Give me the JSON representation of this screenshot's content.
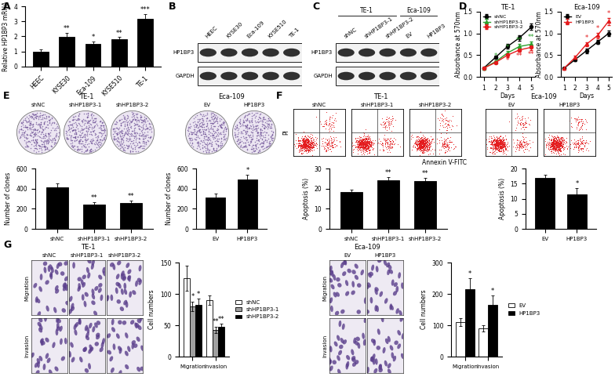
{
  "panel_labels": [
    "A",
    "B",
    "C",
    "D",
    "E",
    "F",
    "G"
  ],
  "chart_data": [
    {
      "type": "bar",
      "categories": [
        "HEEC",
        "KYSE30",
        "Eca-109",
        "KYSE510",
        "TE-1"
      ],
      "values": [
        1.0,
        1.95,
        1.5,
        1.8,
        3.15
      ],
      "errors": [
        0.15,
        0.3,
        0.15,
        0.15,
        0.35
      ],
      "annotations": [
        null,
        "**",
        "*",
        "**",
        "***"
      ],
      "y_label": "Relative HP1BP3 mRNA",
      "ylim": [
        0,
        4
      ],
      "yticks": [
        0,
        1,
        2,
        3,
        4
      ],
      "color": "#000000"
    },
    {
      "type": "line",
      "title": "TE-1",
      "x_label": "Days",
      "y_label": "Absorbance at 570nm",
      "x": [
        1,
        2,
        3,
        4,
        5
      ],
      "xlim": [
        0.7,
        5.3
      ],
      "xticks": [
        1,
        2,
        3,
        4,
        5
      ],
      "ylim": [
        0,
        1.5
      ],
      "yticks": [
        {
          "value": 0,
          "label": "0.0"
        },
        0.5,
        {
          "value": 1,
          "label": "1.0"
        },
        1.5
      ],
      "legend": "upper left",
      "series": [
        {
          "name": "shNC",
          "color": "#000000",
          "marker": "circle",
          "values": [
            0.2,
            0.45,
            0.7,
            0.9,
            1.15
          ],
          "errors": [
            0.02,
            0.04,
            0.05,
            0.06,
            0.07
          ]
        },
        {
          "name": "shHP1BP3-1",
          "color": "#2ca02c",
          "marker": "triangle",
          "values": [
            0.2,
            0.35,
            0.55,
            0.7,
            0.75
          ],
          "errors": [
            0.02,
            0.03,
            0.04,
            0.05,
            0.06
          ],
          "annotations": [
            null,
            "*",
            "*",
            "**",
            "**"
          ]
        },
        {
          "name": "shHP1BP3-2",
          "color": "#e41a1c",
          "marker": "circle",
          "values": [
            0.2,
            0.33,
            0.5,
            0.62,
            0.68
          ],
          "errors": [
            0.02,
            0.03,
            0.04,
            0.05,
            0.06
          ],
          "annotations": [
            null,
            null,
            "*",
            "**",
            "**"
          ]
        }
      ]
    },
    {
      "type": "line",
      "title": "Eca-109",
      "x_label": "Days",
      "y_label": "Absorbance at 570nm",
      "x": [
        1,
        2,
        3,
        4,
        5
      ],
      "xlim": [
        0.7,
        5.3
      ],
      "xticks": [
        1,
        2,
        3,
        4,
        5
      ],
      "ylim": [
        0,
        1.5
      ],
      "yticks": [
        {
          "value": 0,
          "label": "0.0"
        },
        0.5,
        {
          "value": 1,
          "label": "1.0"
        },
        1.5
      ],
      "legend": "upper left",
      "series": [
        {
          "name": "EV",
          "color": "#000000",
          "marker": "circle",
          "values": [
            0.2,
            0.4,
            0.6,
            0.8,
            1.0
          ],
          "errors": [
            0.02,
            0.03,
            0.05,
            0.05,
            0.06
          ]
        },
        {
          "name": "HP1BP3",
          "color": "#e41a1c",
          "marker": "triangle",
          "values": [
            0.2,
            0.45,
            0.75,
            0.95,
            1.28
          ],
          "errors": [
            0.02,
            0.03,
            0.05,
            0.07,
            0.08
          ],
          "annotations": [
            null,
            null,
            "*",
            "*",
            "*"
          ]
        }
      ]
    },
    {
      "type": "bar",
      "categories": [
        "shNC",
        "shHP1BP3-1",
        "shHP1BP3-2"
      ],
      "values": [
        410,
        240,
        255
      ],
      "errors": [
        45,
        25,
        25
      ],
      "annotations": [
        null,
        "**",
        "**"
      ],
      "y_label": "Number of clones",
      "ylim": [
        0,
        600
      ],
      "yticks": [
        0,
        200,
        400,
        600
      ],
      "color": "#000000"
    },
    {
      "type": "bar",
      "categories": [
        "EV",
        "HP1BP3"
      ],
      "values": [
        310,
        490
      ],
      "errors": [
        40,
        50
      ],
      "annotations": [
        null,
        "*"
      ],
      "y_label": "Number of clones",
      "ylim": [
        0,
        600
      ],
      "yticks": [
        0,
        200,
        400,
        600
      ],
      "color": "#000000"
    },
    {
      "type": "bar",
      "categories": [
        "shNC",
        "shHP1BP3-1",
        "shHP1BP3-2"
      ],
      "values": [
        18.5,
        24.2,
        23.8
      ],
      "errors": [
        1.0,
        1.5,
        1.5
      ],
      "annotations": [
        null,
        "**",
        "**"
      ],
      "y_label": "Apoptosis (%)",
      "ylim": [
        0,
        30
      ],
      "yticks": [
        0,
        10,
        20,
        30
      ],
      "color": "#000000"
    },
    {
      "type": "bar",
      "categories": [
        "EV",
        "HP1BP3"
      ],
      "values": [
        17,
        11.5
      ],
      "errors": [
        1.0,
        2.0
      ],
      "annotations": [
        null,
        "*"
      ],
      "y_label": "Apoptosis (%)",
      "ylim": [
        0,
        20
      ],
      "yticks": [
        0,
        5,
        10,
        15,
        20
      ],
      "color": "#000000"
    },
    {
      "type": "bar",
      "categories": [
        "Migration",
        "Invasion"
      ],
      "y_label": "Cell numbers",
      "ylim": [
        0,
        150
      ],
      "yticks": [
        0,
        50,
        100,
        150
      ],
      "legend": "right",
      "series": [
        {
          "name": "shNC",
          "color": "#ffffff",
          "values": [
            125,
            90
          ],
          "errors": [
            20,
            8
          ]
        },
        {
          "name": "shHP1BP3-1",
          "color": "#a0a0a0",
          "values": [
            80,
            43
          ],
          "errors": [
            8,
            5
          ],
          "annotations": [
            "*",
            "**"
          ]
        },
        {
          "name": "shHP1BP3-2",
          "color": "#000000",
          "values": [
            82,
            47
          ],
          "errors": [
            10,
            5
          ],
          "annotations": [
            "*",
            "**"
          ]
        }
      ]
    },
    {
      "type": "bar",
      "categories": [
        "Migration",
        "Invasion"
      ],
      "y_label": "Cell numbers",
      "ylim": [
        0,
        300
      ],
      "yticks": [
        0,
        100,
        200,
        300
      ],
      "legend": "right",
      "series": [
        {
          "name": "EV",
          "color": "#ffffff",
          "values": [
            110,
            90
          ],
          "errors": [
            12,
            10
          ]
        },
        {
          "name": "HP1BP3",
          "color": "#000000",
          "values": [
            215,
            165
          ],
          "errors": [
            35,
            30
          ],
          "annotations": [
            "*",
            "*"
          ]
        }
      ]
    }
  ],
  "blots": [
    {
      "lanes": [
        "HEEC",
        "KYSE30",
        "Eca-109",
        "KYSE510",
        "TE-1"
      ],
      "rows": [
        "HP1BP3",
        "GAPDH"
      ]
    },
    {
      "groups": [
        {
          "name": "TE-1",
          "lanes": [
            "shNC",
            "shHP1BP3-1",
            "shHP1BP3-2"
          ]
        },
        {
          "name": "Eca-109",
          "lanes": [
            "EV",
            "HP1BP3"
          ]
        }
      ],
      "rows": [
        "HP1BP3",
        "GAPDH"
      ]
    }
  ],
  "colony_images": {
    "groups": [
      {
        "name": "TE-1",
        "lanes": [
          "shNC",
          "shHP1BP3-1",
          "shHP1BP3-2"
        ]
      },
      {
        "name": "Eca-109",
        "lanes": [
          "EV",
          "HP1BP3"
        ]
      }
    ]
  },
  "flow_images": {
    "groups": [
      {
        "name": "TE-1",
        "lanes": [
          "shNC",
          "shHP1BP3-1",
          "shHP1BP3-2"
        ]
      },
      {
        "name": "Eca-109",
        "lanes": [
          "EV",
          "HP1BP3"
        ]
      }
    ],
    "y_label": "PI",
    "x_label": "Annexin V-FITC"
  },
  "transwell_images": [
    {
      "group": "TE-1",
      "columns": [
        "shNC",
        "shHP1BP3-1",
        "shHP1BP3-2"
      ],
      "rows": [
        "Migration",
        "Invasion"
      ]
    },
    {
      "group": "Eca-109",
      "columns": [
        "EV",
        "HP1BP3"
      ],
      "rows": [
        "Migration",
        "Invasion"
      ]
    }
  ]
}
